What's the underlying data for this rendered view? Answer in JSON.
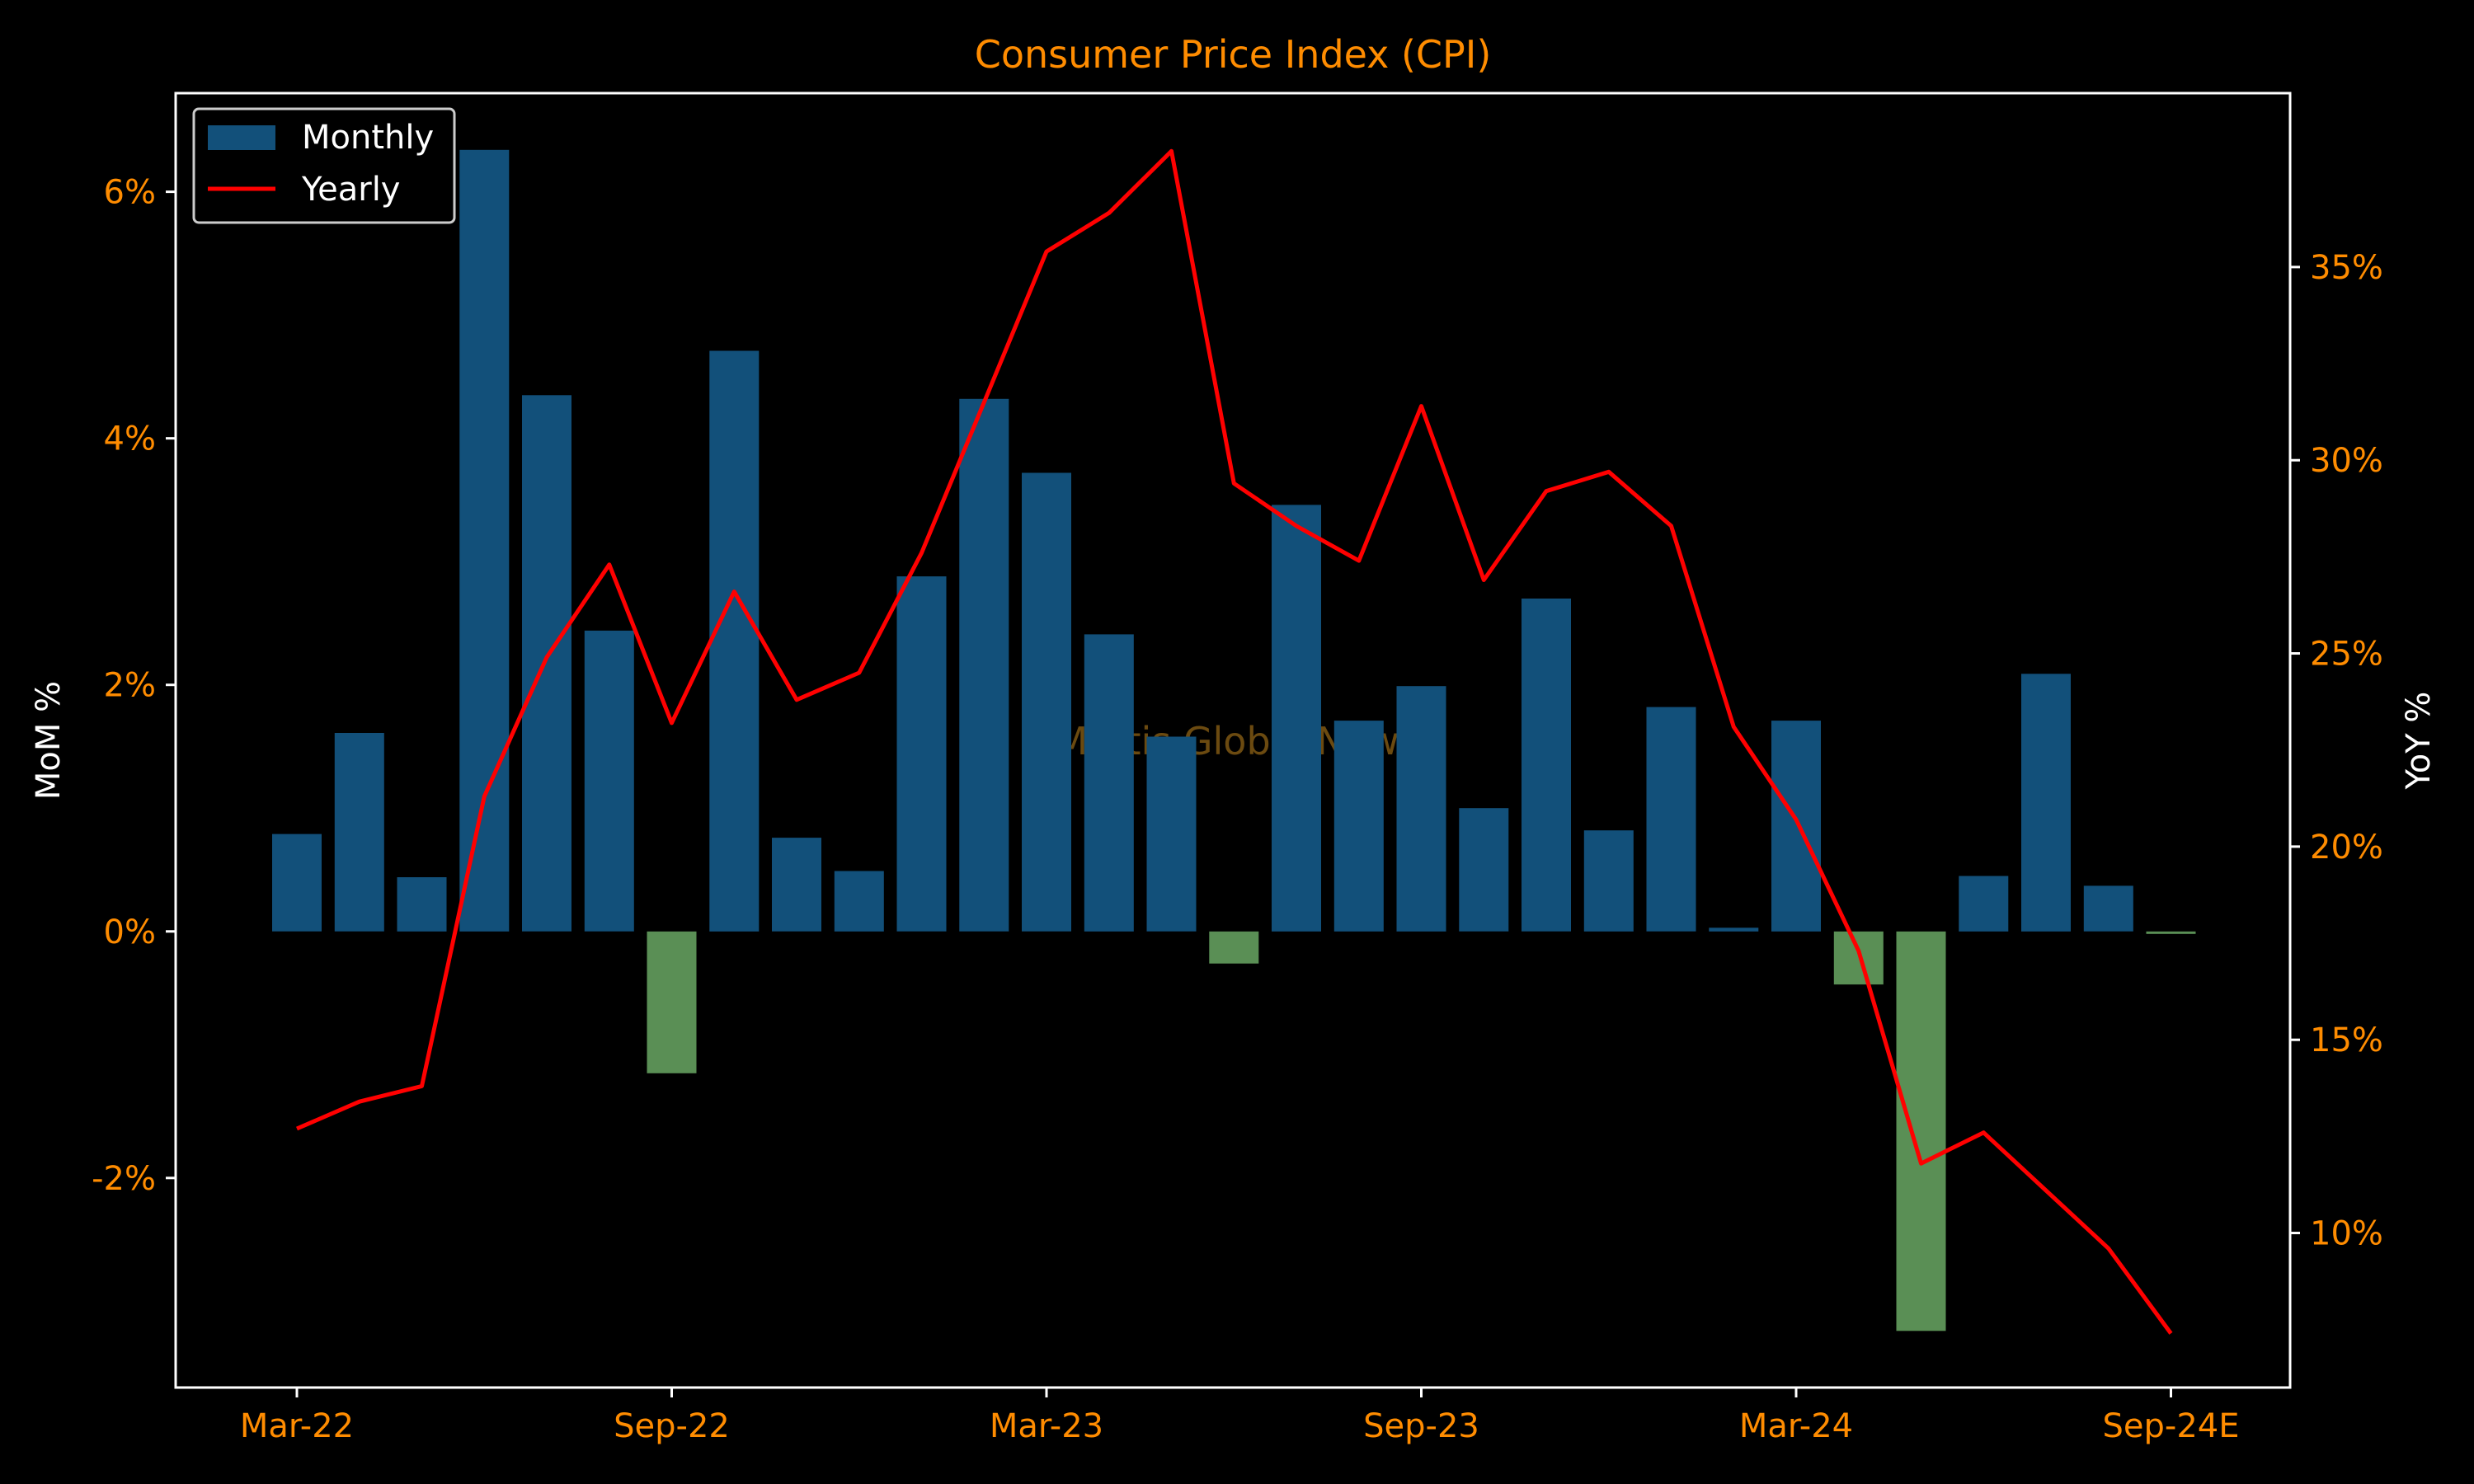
{
  "chart_data": {
    "type": "bar",
    "title": "Consumer Price Index (CPI)",
    "ylabel_left": "MoM %",
    "ylabel_right": "YoY %",
    "watermark": "Mettis Global News",
    "categories": [
      "Mar-22",
      "Apr-22",
      "May-22",
      "Jun-22",
      "Jul-22",
      "Aug-22",
      "Sep-22",
      "Oct-22",
      "Nov-22",
      "Dec-22",
      "Jan-23",
      "Feb-23",
      "Mar-23",
      "Apr-23",
      "May-23",
      "Jun-23",
      "Jul-23",
      "Aug-23",
      "Sep-23",
      "Oct-23",
      "Nov-23",
      "Dec-23",
      "Jan-24",
      "Feb-24",
      "Mar-24",
      "Apr-24",
      "May-24",
      "Jun-24",
      "Jul-24",
      "Aug-24",
      "Sep-24E"
    ],
    "x_tick_labels": [
      "Mar-22",
      "Sep-22",
      "Mar-23",
      "Sep-23",
      "Mar-24",
      "Sep-24E"
    ],
    "x_tick_indices": [
      0,
      6,
      12,
      18,
      24,
      30
    ],
    "ylim_left": [
      -3.7,
      6.8
    ],
    "yticks_left": [
      -2,
      0,
      2,
      4,
      6
    ],
    "yticklabels_left": [
      "-2%",
      "0%",
      "2%",
      "4%",
      "6%"
    ],
    "ylim_right": [
      6,
      39.5
    ],
    "yticks_right": [
      10,
      15,
      20,
      25,
      30,
      35
    ],
    "yticklabels_right": [
      "10%",
      "15%",
      "20%",
      "25%",
      "30%",
      "35%"
    ],
    "series": [
      {
        "name": "Monthly",
        "axis": "left",
        "kind": "bar",
        "color_positive": "#12507a",
        "color_negative": "#5a8f55",
        "values": [
          0.79,
          1.61,
          0.44,
          6.34,
          4.35,
          2.44,
          -1.15,
          4.71,
          0.76,
          0.49,
          2.88,
          4.32,
          3.72,
          2.41,
          1.58,
          -0.26,
          3.46,
          1.71,
          1.99,
          1.0,
          2.7,
          0.82,
          1.82,
          0.03,
          1.71,
          -0.43,
          -3.24,
          0.45,
          2.09,
          0.37,
          -0.02
        ]
      },
      {
        "name": "Yearly",
        "axis": "right",
        "kind": "line",
        "color": "#ff0000",
        "values": [
          12.7,
          13.4,
          13.8,
          21.3,
          24.9,
          27.3,
          23.2,
          26.6,
          23.8,
          24.5,
          27.6,
          31.5,
          35.4,
          36.4,
          38.0,
          29.4,
          28.3,
          27.4,
          31.4,
          26.9,
          29.2,
          29.7,
          28.3,
          23.1,
          20.7,
          17.3,
          11.8,
          12.6,
          11.1,
          9.6,
          7.4
        ]
      }
    ],
    "legend": {
      "position": "top-left",
      "entries": [
        "Monthly",
        "Yearly"
      ]
    },
    "colors": {
      "background": "#000000",
      "axis": "#ffffff",
      "tick_label": "#ff8c00",
      "title": "#ff8c00",
      "watermark": "#6b4a10"
    }
  }
}
